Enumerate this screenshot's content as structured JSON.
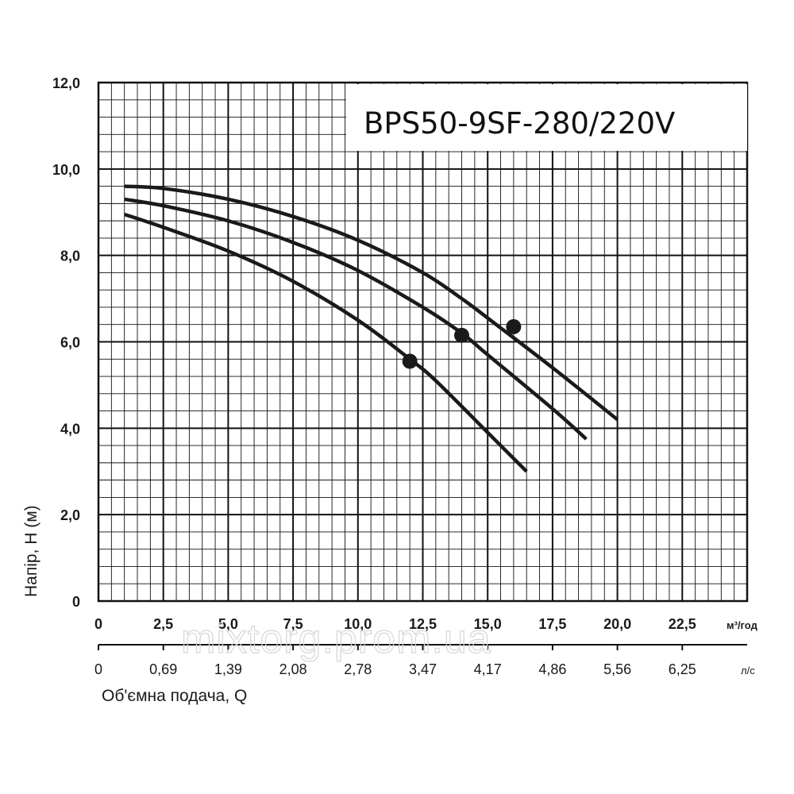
{
  "chart_data": {
    "type": "line",
    "title": "BPS50-9SF-280/220V",
    "ylabel": "Напір, Н (м)",
    "xlabel": "Об'ємна  подача, Q",
    "x_unit": "м³/год",
    "x2_unit": "л/с",
    "xlim": [
      0,
      25
    ],
    "ylim": [
      0,
      12
    ],
    "x_ticks": [
      "0",
      "2,5",
      "5,0",
      "7,5",
      "10,0",
      "12,5",
      "15,0",
      "17,5",
      "20,0",
      "22,5"
    ],
    "x_tick_values": [
      0,
      2.5,
      5,
      7.5,
      10,
      12.5,
      15,
      17.5,
      20,
      22.5
    ],
    "x2_ticks": [
      "0",
      "0,69",
      "1,39",
      "2,08",
      "2,78",
      "3,47",
      "4,17",
      "4,86",
      "5,56",
      "6,25"
    ],
    "y_ticks": [
      "0",
      "2,0",
      "4,0",
      "6,0",
      "8,0",
      "10,0",
      "12,0"
    ],
    "y_tick_values": [
      0,
      2,
      4,
      6,
      8,
      10,
      12
    ],
    "grid": true,
    "series": [
      {
        "x": [
          1,
          2.5,
          5,
          7.5,
          10,
          12.5,
          14,
          15,
          17.5,
          20
        ],
        "y": [
          9.6,
          9.55,
          9.3,
          8.9,
          8.35,
          7.6,
          7.0,
          6.55,
          5.4,
          4.2
        ],
        "marker": {
          "x": 16,
          "y": 6.35
        }
      },
      {
        "x": [
          1,
          2.5,
          5,
          7.5,
          10,
          12.5,
          14,
          15,
          17.5,
          18.8
        ],
        "y": [
          9.3,
          9.15,
          8.8,
          8.3,
          7.65,
          6.8,
          6.2,
          5.7,
          4.45,
          3.75
        ],
        "marker": {
          "x": 14,
          "y": 6.15
        }
      },
      {
        "x": [
          1,
          2.5,
          5,
          7.5,
          10,
          12,
          13,
          15,
          16.5
        ],
        "y": [
          8.95,
          8.65,
          8.1,
          7.4,
          6.5,
          5.6,
          5.1,
          3.9,
          3.0
        ],
        "marker": {
          "x": 12,
          "y": 5.55
        }
      }
    ]
  },
  "colors": {
    "line": "#1a1a1a",
    "grid": "#111111",
    "background": "#ffffff"
  },
  "watermark": "mixtorg.prom.ua"
}
